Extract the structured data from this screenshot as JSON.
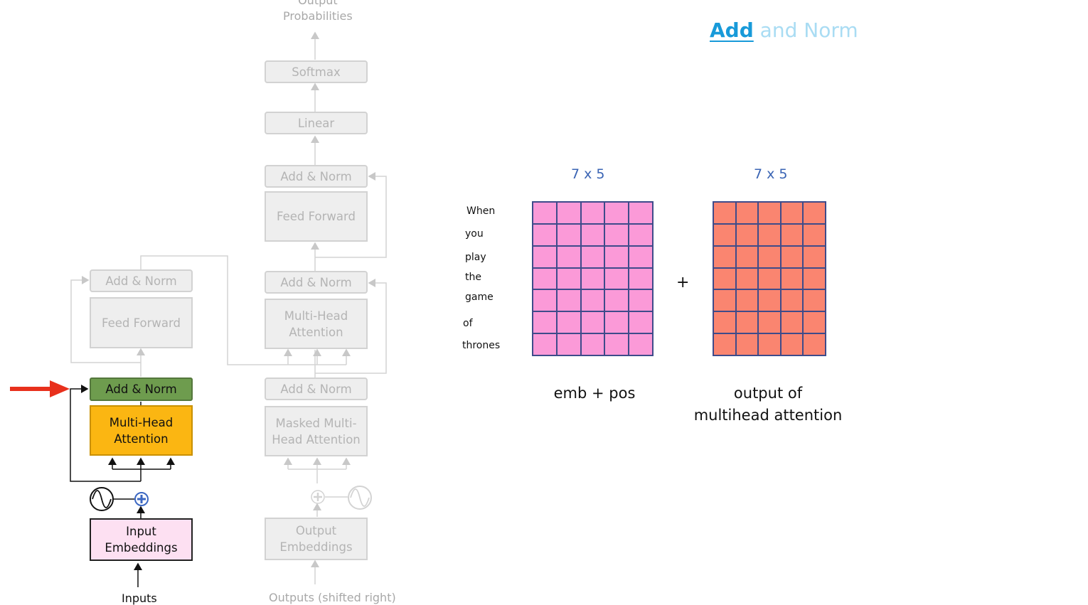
{
  "title": {
    "accent": "Add",
    "rest": " and Norm"
  },
  "encoder": {
    "add_norm_top": "Add & Norm",
    "feed_forward": "Feed Forward",
    "add_norm_active": "Add & Norm",
    "multi_head_attention": "Multi-Head\nAttention",
    "input_embeddings": "Input\nEmbeddings",
    "inputs_label": "Inputs"
  },
  "decoder": {
    "output_probabilities": "Output\nProbabilities",
    "softmax": "Softmax",
    "linear": "Linear",
    "add_norm_3": "Add & Norm",
    "feed_forward": "Feed Forward",
    "add_norm_2": "Add & Norm",
    "multi_head_attention": "Multi-Head\nAttention",
    "add_norm_1": "Add & Norm",
    "masked_multi_head_attention": "Masked Multi-\nHead Attention",
    "output_embeddings": "Output\nEmbeddings",
    "outputs_label": "Outputs (shifted right)"
  },
  "matrices": {
    "words": [
      "When",
      "you",
      "play",
      "the",
      "game",
      "of",
      "thrones"
    ],
    "left": {
      "dims": "7 x 5",
      "rows": 7,
      "cols": 5,
      "color": "#fb9ad8",
      "caption": "emb + pos"
    },
    "right": {
      "dims": "7 x 5",
      "rows": 7,
      "cols": 5,
      "color": "#fa8570",
      "caption": "output of\nmultihead attention"
    },
    "operator": "+"
  },
  "colors": {
    "pointer_arrow": "#e8301c",
    "plus_circle": "#3b67c2"
  }
}
